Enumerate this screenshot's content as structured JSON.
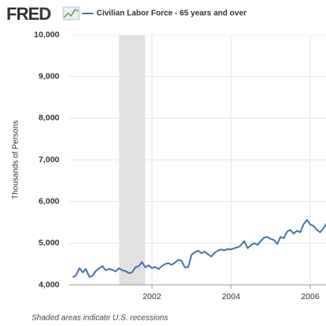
{
  "chart_data": {
    "type": "line",
    "logo": "FRED",
    "ylabel": "Thousands of Persons",
    "note": "Shaded areas indicate U.S. recessions",
    "x": [
      2000.0,
      2000.08,
      2000.17,
      2000.25,
      2000.33,
      2000.42,
      2000.5,
      2000.58,
      2000.67,
      2000.75,
      2000.83,
      2000.92,
      2001.0,
      2001.08,
      2001.17,
      2001.25,
      2001.33,
      2001.42,
      2001.5,
      2001.58,
      2001.67,
      2001.75,
      2001.83,
      2001.92,
      2002.0,
      2002.08,
      2002.17,
      2002.25,
      2002.33,
      2002.42,
      2002.5,
      2002.58,
      2002.67,
      2002.75,
      2002.83,
      2002.92,
      2003.0,
      2003.08,
      2003.17,
      2003.25,
      2003.33,
      2003.42,
      2003.5,
      2003.58,
      2003.67,
      2003.75,
      2003.83,
      2003.92,
      2004.0,
      2004.08,
      2004.17,
      2004.25,
      2004.33,
      2004.42,
      2004.5,
      2004.58,
      2004.67,
      2004.75,
      2004.83,
      2004.92,
      2005.0,
      2005.08,
      2005.17,
      2005.25,
      2005.33,
      2005.42,
      2005.5,
      2005.58,
      2005.67,
      2005.75,
      2005.83,
      2005.92,
      2006.0,
      2006.08,
      2006.17,
      2006.25,
      2006.33,
      2006.42
    ],
    "series": [
      {
        "name": "Civilian Labor Force - 65 years and over",
        "color": "#4572a7",
        "values": [
          4180,
          4230,
          4400,
          4300,
          4380,
          4190,
          4220,
          4330,
          4400,
          4450,
          4350,
          4380,
          4360,
          4320,
          4400,
          4350,
          4330,
          4280,
          4300,
          4420,
          4450,
          4550,
          4420,
          4470,
          4400,
          4430,
          4380,
          4450,
          4500,
          4520,
          4480,
          4530,
          4600,
          4580,
          4420,
          4430,
          4720,
          4780,
          4820,
          4760,
          4800,
          4730,
          4680,
          4770,
          4820,
          4850,
          4830,
          4860,
          4850,
          4880,
          4900,
          4950,
          5050,
          4880,
          4950,
          5000,
          4960,
          5050,
          5130,
          5150,
          5100,
          5080,
          4980,
          5150,
          5120,
          5280,
          5320,
          5230,
          5300,
          5260,
          5450,
          5560,
          5450,
          5420,
          5320,
          5260,
          5350,
          5480
        ]
      }
    ],
    "recessions": [
      [
        2001.17,
        2001.83
      ]
    ],
    "xlim": [
      1999.9,
      2006.4
    ],
    "xticks": [
      2002,
      2004,
      2006
    ],
    "ylim": [
      4000,
      10000
    ],
    "yticks": [
      {
        "value": 4000,
        "label": "4,000"
      },
      {
        "value": 5000,
        "label": "5,000"
      },
      {
        "value": 6000,
        "label": "6,000"
      },
      {
        "value": 7000,
        "label": "7,000"
      },
      {
        "value": 8000,
        "label": "8,000"
      },
      {
        "value": 9000,
        "label": "9,000"
      },
      {
        "value": 10000,
        "label": "10,000"
      }
    ],
    "grid": true
  }
}
